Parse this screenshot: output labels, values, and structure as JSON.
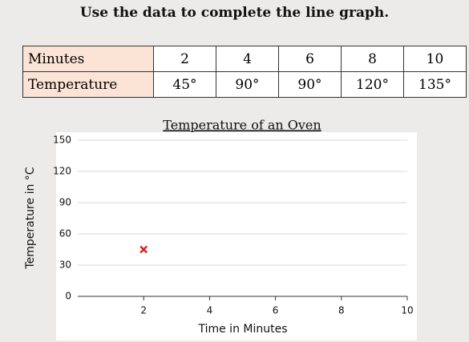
{
  "title": "Use the data to complete the line graph.",
  "table": {
    "rows": [
      [
        "Minutes",
        "2",
        "4",
        "6",
        "8",
        "10"
      ],
      [
        "Temperature",
        "45°",
        "90°",
        "90°",
        "120°",
        "135°"
      ]
    ]
  },
  "chart_data": {
    "type": "scatter",
    "title": "Temperature of an Oven",
    "x_label": "Time in Minutes",
    "y_label": "Temperature in °C",
    "x": [
      2
    ],
    "values": [
      45
    ],
    "color": "#e02020",
    "marker": "x",
    "xlim": [
      0,
      10
    ],
    "xticks": [
      2,
      4,
      6,
      8,
      10
    ],
    "ylim": [
      0,
      150
    ],
    "yticks": [
      0,
      30,
      60,
      90,
      120,
      150
    ],
    "grid": true
  }
}
